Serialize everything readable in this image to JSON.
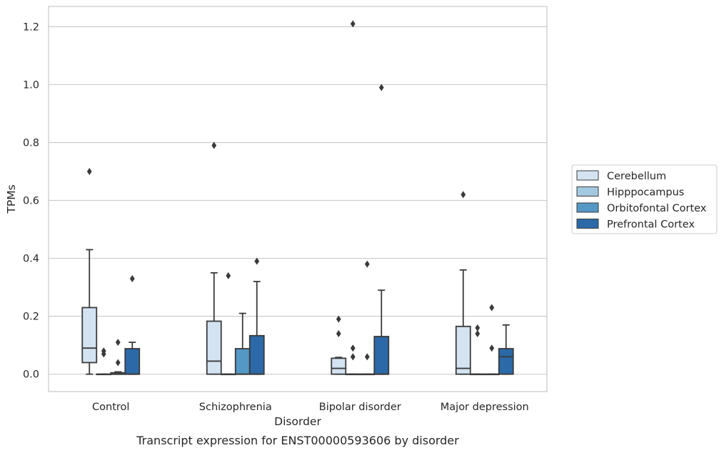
{
  "chart_data": {
    "type": "box",
    "title": "",
    "caption": "Transcript expression for ENST00000593606 by disorder",
    "xlabel": "Disorder",
    "ylabel": "TPMs",
    "ylim": [
      -0.06,
      1.27
    ],
    "yticks": [
      0.0,
      0.2,
      0.4,
      0.6,
      0.8,
      1.0,
      1.2
    ],
    "ytick_labels": [
      "0.0",
      "0.2",
      "0.4",
      "0.6",
      "0.8",
      "1.0",
      "1.2"
    ],
    "grid": "horizontal",
    "legend_position": "right",
    "categories": [
      "Control",
      "Schizophrenia",
      "Bipolar disorder",
      "Major depression"
    ],
    "series": [
      {
        "name": "Cerebellum",
        "color": "#d4e3f2",
        "boxes": [
          {
            "whisker_low": 0.0,
            "q1": 0.04,
            "median": 0.09,
            "q3": 0.23,
            "whisker_high": 0.43,
            "outliers": [
              0.7
            ]
          },
          {
            "whisker_low": 0.0,
            "q1": 0.0,
            "median": 0.045,
            "q3": 0.183,
            "whisker_high": 0.35,
            "outliers": [
              0.79
            ]
          },
          {
            "whisker_low": 0.0,
            "q1": 0.0,
            "median": 0.02,
            "q3": 0.055,
            "whisker_high": 0.058,
            "outliers": [
              0.14,
              0.19
            ]
          },
          {
            "whisker_low": 0.0,
            "q1": 0.0,
            "median": 0.02,
            "q3": 0.165,
            "whisker_high": 0.36,
            "outliers": [
              0.62
            ]
          }
        ]
      },
      {
        "name": "Hipppocampus",
        "color": "#a3c9e0",
        "boxes": [
          {
            "whisker_low": 0.0,
            "q1": 0.0,
            "median": 0.0,
            "q3": 0.0,
            "whisker_high": 0.0,
            "outliers": [
              0.07,
              0.08
            ]
          },
          {
            "whisker_low": 0.0,
            "q1": 0.0,
            "median": 0.0,
            "q3": 0.0,
            "whisker_high": 0.0,
            "outliers": [
              0.34
            ]
          },
          {
            "whisker_low": 0.0,
            "q1": 0.0,
            "median": 0.0,
            "q3": 0.0,
            "whisker_high": 0.0,
            "outliers": [
              0.06,
              0.09,
              1.21
            ]
          },
          {
            "whisker_low": 0.0,
            "q1": 0.0,
            "median": 0.0,
            "q3": 0.0,
            "whisker_high": 0.0,
            "outliers": [
              0.14,
              0.16
            ]
          }
        ]
      },
      {
        "name": "Orbitofontal Cortex",
        "color": "#5498c6",
        "boxes": [
          {
            "whisker_low": 0.0,
            "q1": 0.0,
            "median": 0.0,
            "q3": 0.005,
            "whisker_high": 0.008,
            "outliers": [
              0.04,
              0.11
            ]
          },
          {
            "whisker_low": 0.0,
            "q1": 0.0,
            "median": 0.0,
            "q3": 0.088,
            "whisker_high": 0.21,
            "outliers": []
          },
          {
            "whisker_low": 0.0,
            "q1": 0.0,
            "median": 0.0,
            "q3": 0.0,
            "whisker_high": 0.0,
            "outliers": [
              0.06,
              0.38
            ]
          },
          {
            "whisker_low": 0.0,
            "q1": 0.0,
            "median": 0.0,
            "q3": 0.0,
            "whisker_high": 0.0,
            "outliers": [
              0.09,
              0.23
            ]
          }
        ]
      },
      {
        "name": "Prefrontal Cortex",
        "color": "#2b69a8",
        "boxes": [
          {
            "whisker_low": 0.0,
            "q1": 0.0,
            "median": 0.0,
            "q3": 0.088,
            "whisker_high": 0.11,
            "outliers": [
              0.33
            ]
          },
          {
            "whisker_low": 0.0,
            "q1": 0.0,
            "median": 0.0,
            "q3": 0.133,
            "whisker_high": 0.32,
            "outliers": [
              0.39
            ]
          },
          {
            "whisker_low": 0.0,
            "q1": 0.0,
            "median": 0.0,
            "q3": 0.13,
            "whisker_high": 0.29,
            "outliers": [
              0.99
            ]
          },
          {
            "whisker_low": 0.0,
            "q1": 0.0,
            "median": 0.06,
            "q3": 0.088,
            "whisker_high": 0.17,
            "outliers": []
          }
        ]
      }
    ]
  }
}
